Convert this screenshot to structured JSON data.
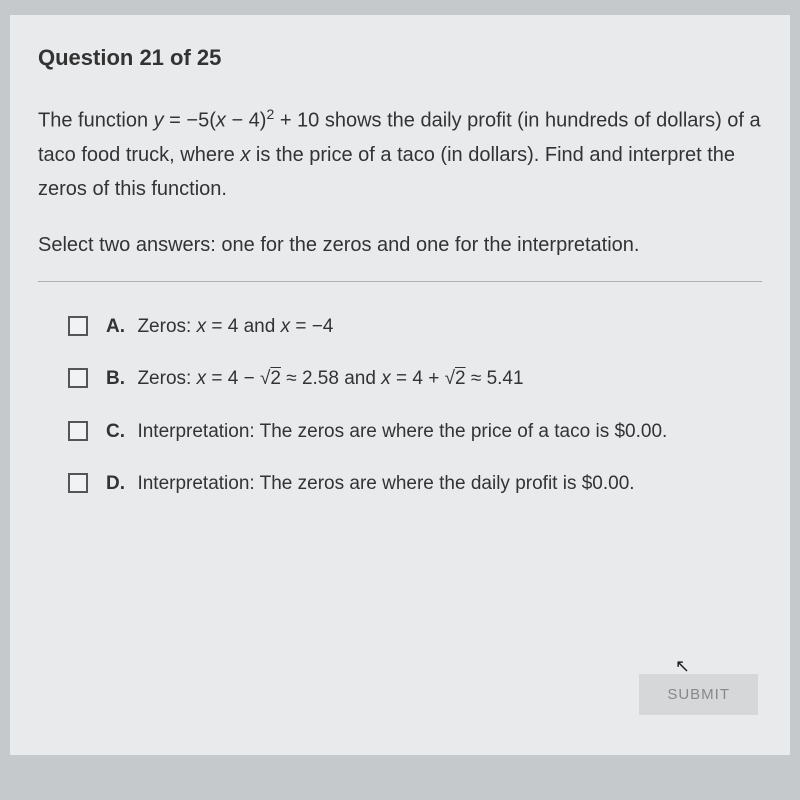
{
  "header": {
    "question_number": "Question 21 of 25"
  },
  "question": {
    "text_html": "The function <span class=\"italic\">y</span> = −5(<span class=\"italic\">x</span> − 4)<sup>2</sup> + 10 shows the daily profit (in hundreds of dollars) of a taco food truck, where <span class=\"italic\">x</span> is the price of a taco (in dollars). Find and interpret the zeros of this function.",
    "instruction": "Select two answers: one for the zeros and one for the interpretation."
  },
  "options": [
    {
      "label": "A.",
      "text_html": "Zeros: <span class=\"italic\">x</span> = 4 and <span class=\"italic\">x</span> = −4"
    },
    {
      "label": "B.",
      "text_html": "Zeros: <span class=\"italic\">x</span> = 4 − √<span class=\"sqrt\">2</span> ≈ 2.58 and <span class=\"italic\">x</span> = 4 + √<span class=\"sqrt\">2</span> ≈ 5.41"
    },
    {
      "label": "C.",
      "text_html": "Interpretation: The zeros are where the price of a taco is $0.00."
    },
    {
      "label": "D.",
      "text_html": "Interpretation: The zeros are where the daily profit is $0.00."
    }
  ],
  "buttons": {
    "submit": "SUBMIT"
  },
  "styling": {
    "background_color": "#c5c9cb",
    "content_background": "#e8eaec",
    "text_color": "#333333",
    "checkbox_border": "#555555",
    "divider_color": "#b0b0b0",
    "submit_bg": "#d5d7d9",
    "submit_text": "#888888",
    "header_fontsize": 22,
    "body_fontsize": 20,
    "option_fontsize": 19
  }
}
